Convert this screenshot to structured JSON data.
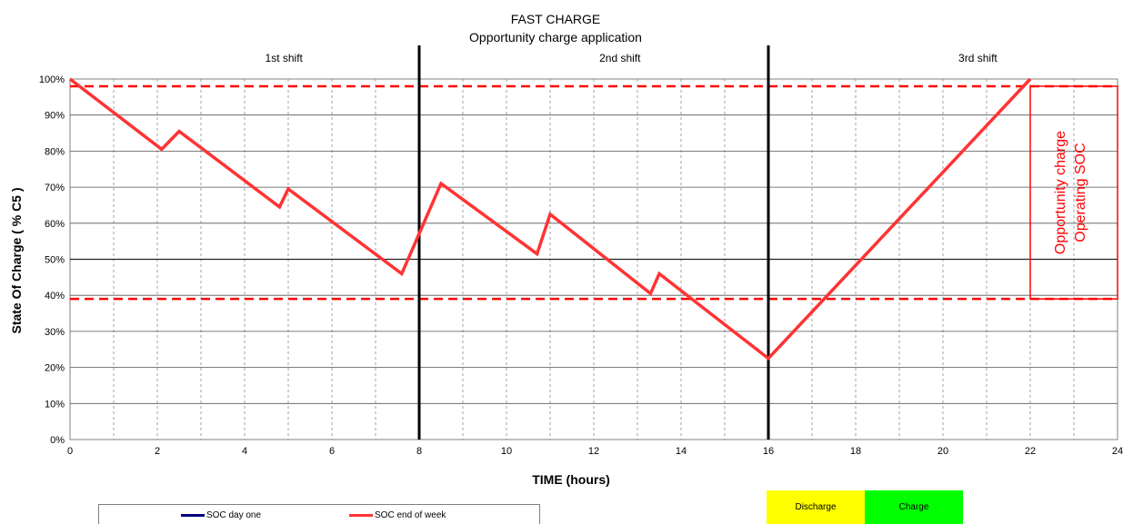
{
  "chart_data": {
    "type": "line",
    "title": "FAST CHARGE",
    "subtitle": "Opportunity charge application",
    "xlabel": "TIME (hours)",
    "ylabel": "State Of Charge ( % C5 )",
    "xlim": [
      0,
      24
    ],
    "ylim": [
      0,
      100
    ],
    "x_ticks": [
      0,
      2,
      4,
      6,
      8,
      10,
      12,
      14,
      16,
      18,
      20,
      22,
      24
    ],
    "y_ticks": [
      0,
      10,
      20,
      30,
      40,
      50,
      60,
      70,
      80,
      90,
      100
    ],
    "y_tick_labels": [
      "0%",
      "10%",
      "20%",
      "30%",
      "40%",
      "50%",
      "60%",
      "70%",
      "80%",
      "90%",
      "100%"
    ],
    "grid": true,
    "shift_dividers": [
      8,
      16
    ],
    "shifts": [
      {
        "label": "1st shift",
        "x": 4.9
      },
      {
        "label": "2nd shift",
        "x": 12.6
      },
      {
        "label": "3rd shift",
        "x": 20.8
      }
    ],
    "operating_band": {
      "upper": 98,
      "lower": 39,
      "color": "#ff0000"
    },
    "band_annotation": [
      "Opportunity charge",
      "Operating SOC"
    ],
    "series": [
      {
        "name": "SOC end of week",
        "color": "#ff3333",
        "points": [
          [
            0,
            100
          ],
          [
            2.1,
            80.5
          ],
          [
            2.5,
            85.5
          ],
          [
            4.8,
            64.5
          ],
          [
            5.0,
            69.5
          ],
          [
            7.6,
            46
          ],
          [
            8.5,
            71
          ],
          [
            10.7,
            51.5
          ],
          [
            11.0,
            62.5
          ],
          [
            13.3,
            40.5
          ],
          [
            13.5,
            46
          ],
          [
            16.0,
            22.5
          ],
          [
            22.0,
            100
          ]
        ]
      }
    ],
    "legend": [
      {
        "label": "SOC day one",
        "color": "#000080"
      },
      {
        "label": "SOC end of week",
        "color": "#ff3333"
      }
    ],
    "key": [
      {
        "label": "Discharge",
        "color": "#ffff00"
      },
      {
        "label": "Charge",
        "color": "#00ff00"
      }
    ]
  }
}
